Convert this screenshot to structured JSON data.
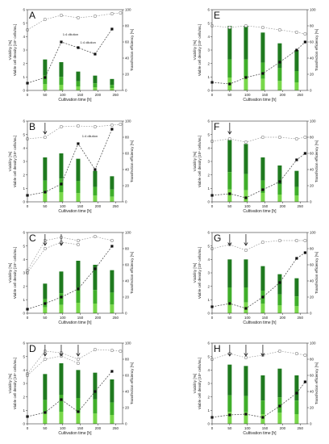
{
  "chart_data": [
    {
      "panel": "A",
      "type": "bar",
      "xlabel": "Cultivation time [h]",
      "ylabel_left": "Viability [%]",
      "ylabel_left_inner": "Viable cell density [10⁶ cells/mL]",
      "ylabel_right": "Transfection efficiency [%]",
      "x_ticks": [
        0,
        50,
        100,
        150,
        200,
        250
      ],
      "y_left_ticks": [
        0,
        1,
        2,
        3,
        4,
        5,
        6
      ],
      "y_right_ticks": [
        0,
        20,
        40,
        60,
        80,
        100
      ],
      "xlim": [
        0,
        270
      ],
      "ylim_left": [
        0,
        6
      ],
      "ylim_right": [
        0,
        100
      ],
      "arrows": [],
      "annotations": [
        {
          "text": "1:4 dilution",
          "x": 100,
          "y": 64
        },
        {
          "text": "1:4 dilution",
          "x": 150,
          "y": 54
        }
      ],
      "bars": [
        {
          "x": 50,
          "vcd": 2.3
        },
        {
          "x": 96,
          "vcd": 2.1
        },
        {
          "x": 144,
          "vcd": 1.4
        },
        {
          "x": 192,
          "vcd": 1.1
        },
        {
          "x": 240,
          "vcd": 0.85
        }
      ],
      "series": [
        {
          "style": "viability",
          "x": [
            0,
            50,
            96,
            144,
            192,
            240,
            264
          ],
          "y": [
            75,
            88,
            93,
            90,
            92,
            95,
            96
          ]
        },
        {
          "style": "efficiency",
          "x": [
            0,
            50,
            96,
            144,
            192,
            240
          ],
          "y": [
            9,
            16,
            60,
            53,
            45,
            76
          ]
        }
      ]
    },
    {
      "panel": "B",
      "type": "bar",
      "xlabel": "Cultivation time [h]",
      "ylabel_left": "Viability [%]",
      "ylabel_left_inner": "Viable cell density [10⁶ cells/mL]",
      "ylabel_right": "Transfection efficiency [%]",
      "x_ticks": [
        0,
        50,
        100,
        150,
        200,
        250
      ],
      "y_left_ticks": [
        0,
        1,
        2,
        3,
        4,
        5,
        6
      ],
      "y_right_ticks": [
        0,
        20,
        40,
        60,
        80,
        100
      ],
      "xlim": [
        0,
        270
      ],
      "ylim_left": [
        0,
        6
      ],
      "ylim_right": [
        0,
        100
      ],
      "arrows": [
        50
      ],
      "annotations": [
        {
          "text": "1:4 dilution",
          "x": 155,
          "y": 76
        }
      ],
      "bars": [
        {
          "x": 50,
          "vcd": 3.3
        },
        {
          "x": 96,
          "vcd": 3.6
        },
        {
          "x": 144,
          "vcd": 3.2
        },
        {
          "x": 192,
          "vcd": 2.3
        },
        {
          "x": 240,
          "vcd": 1.9
        }
      ],
      "series": [
        {
          "style": "viability",
          "x": [
            0,
            50,
            96,
            144,
            192,
            240,
            264
          ],
          "y": [
            78,
            80,
            93,
            94,
            93,
            95,
            96
          ]
        },
        {
          "style": "efficiency",
          "x": [
            0,
            50,
            96,
            144,
            192,
            240
          ],
          "y": [
            8,
            12,
            22,
            72,
            40,
            90
          ]
        }
      ]
    },
    {
      "panel": "C",
      "type": "bar",
      "xlabel": "Cultivation time [h]",
      "ylabel_left": "Viability [%]",
      "ylabel_left_inner": "Viable cell density [10⁶ cells/mL]",
      "ylabel_right": "Transfection efficiency [%]",
      "x_ticks": [
        0,
        50,
        100,
        150,
        200,
        250
      ],
      "y_left_ticks": [
        0,
        1,
        2,
        3,
        4,
        5,
        6
      ],
      "y_right_ticks": [
        0,
        20,
        40,
        60,
        80,
        100
      ],
      "xlim": [
        0,
        270
      ],
      "ylim_left": [
        0,
        6
      ],
      "ylim_right": [
        0,
        100
      ],
      "arrows": [
        50,
        96
      ],
      "annotations": [],
      "bars": [
        {
          "x": 50,
          "vcd": 2.2
        },
        {
          "x": 96,
          "vcd": 3.1
        },
        {
          "x": 144,
          "vcd": 3.9
        },
        {
          "x": 192,
          "vcd": 3.6
        },
        {
          "x": 240,
          "vcd": 3.2
        }
      ],
      "series": [
        {
          "style": "viability",
          "x": [
            0,
            50,
            96,
            144,
            192,
            240
          ],
          "y": [
            53,
            90,
            94,
            90,
            95,
            90
          ]
        },
        {
          "style": "viability2",
          "x": [
            0,
            50,
            96,
            144
          ],
          "y": [
            50,
            80,
            88,
            85
          ]
        },
        {
          "style": "efficiency",
          "x": [
            0,
            50,
            96,
            144,
            192,
            240
          ],
          "y": [
            5,
            12,
            20,
            30,
            55,
            83
          ]
        }
      ]
    },
    {
      "panel": "D",
      "type": "bar",
      "xlabel": "Cultivation time [h]",
      "ylabel_left": "Viability [%]",
      "ylabel_left_inner": "Viable cell density [10⁶ cells/mL]",
      "ylabel_right": "Transfection efficiency [%]",
      "x_ticks": [
        0,
        50,
        100,
        150,
        200,
        250
      ],
      "y_left_ticks": [
        0,
        1,
        2,
        3,
        4,
        5,
        6
      ],
      "y_right_ticks": [
        0,
        20,
        40,
        60,
        80,
        100
      ],
      "xlim": [
        0,
        270
      ],
      "ylim_left": [
        0,
        6
      ],
      "ylim_right": [
        0,
        100
      ],
      "arrows": [
        50,
        96,
        144
      ],
      "annotations": [],
      "bars": [
        {
          "x": 50,
          "vcd": 3.7
        },
        {
          "x": 96,
          "vcd": 4.5
        },
        {
          "x": 144,
          "vcd": 4.0
        },
        {
          "x": 192,
          "vcd": 3.8
        },
        {
          "x": 240,
          "vcd": 3.3
        }
      ],
      "series": [
        {
          "style": "viability",
          "x": [
            0,
            50,
            96,
            144,
            192,
            240,
            264
          ],
          "y": [
            62,
            90,
            88,
            80,
            92,
            91,
            90
          ]
        },
        {
          "style": "viability2",
          "x": [
            0,
            50,
            96,
            144
          ],
          "y": [
            60,
            80,
            84,
            75
          ]
        },
        {
          "style": "efficiency",
          "x": [
            0,
            50,
            96,
            144,
            192,
            240
          ],
          "y": [
            9,
            14,
            30,
            15,
            40,
            65
          ]
        }
      ]
    },
    {
      "panel": "E",
      "type": "bar",
      "xlabel": "Cultivation time [h]",
      "ylabel_left": "Viability [%]",
      "ylabel_left_inner": "Viable cell density [10⁶ cells/mL]",
      "ylabel_right": "Transfection efficiency [%]",
      "x_ticks": [
        0,
        50,
        100,
        150,
        200,
        250
      ],
      "y_left_ticks": [
        0,
        1,
        2,
        3,
        4,
        5,
        6
      ],
      "y_right_ticks": [
        0,
        20,
        40,
        60,
        80,
        100
      ],
      "xlim": [
        0,
        270
      ],
      "ylim_left": [
        0,
        6
      ],
      "ylim_right": [
        0,
        100
      ],
      "arrows": [],
      "annotations": [],
      "bars": [
        {
          "x": 50,
          "vcd": 4.8
        },
        {
          "x": 96,
          "vcd": 4.8
        },
        {
          "x": 144,
          "vcd": 4.3
        },
        {
          "x": 192,
          "vcd": 3.5
        },
        {
          "x": 240,
          "vcd": 3.0
        }
      ],
      "series": [
        {
          "style": "viability",
          "x": [
            0,
            50,
            96,
            144,
            192,
            240,
            264
          ],
          "y": [
            80,
            78,
            80,
            78,
            75,
            72,
            70
          ]
        },
        {
          "style": "efficiency",
          "x": [
            0,
            50,
            96,
            144,
            192,
            240,
            264
          ],
          "y": [
            10,
            8,
            16,
            21,
            35,
            50,
            60
          ]
        }
      ]
    },
    {
      "panel": "F",
      "type": "bar",
      "xlabel": "Cultivation time [h]",
      "ylabel_left": "Viability [%]",
      "ylabel_left_inner": "Viable cell density [10⁶ cells/mL]",
      "ylabel_right": "Transfection efficiency [%]",
      "x_ticks": [
        0,
        50,
        100,
        150,
        200,
        250
      ],
      "y_left_ticks": [
        0,
        1,
        2,
        3,
        4,
        5,
        6
      ],
      "y_right_ticks": [
        0,
        20,
        40,
        60,
        80,
        100
      ],
      "xlim": [
        0,
        270
      ],
      "ylim_left": [
        0,
        6
      ],
      "ylim_right": [
        0,
        100
      ],
      "arrows": [
        50
      ],
      "annotations": [],
      "bars": [
        {
          "x": 50,
          "vcd": 4.6
        },
        {
          "x": 96,
          "vcd": 4.3
        },
        {
          "x": 144,
          "vcd": 3.3
        },
        {
          "x": 192,
          "vcd": 2.7
        },
        {
          "x": 240,
          "vcd": 2.3
        }
      ],
      "series": [
        {
          "style": "viability",
          "x": [
            0,
            50,
            96,
            144,
            192,
            240,
            264
          ],
          "y": [
            75,
            78,
            74,
            80,
            80,
            78,
            80
          ]
        },
        {
          "style": "efficiency",
          "x": [
            0,
            50,
            96,
            144,
            192,
            240,
            264
          ],
          "y": [
            8,
            10,
            5,
            15,
            25,
            52,
            60
          ]
        }
      ]
    },
    {
      "panel": "G",
      "type": "bar",
      "xlabel": "Cultivation time [h]",
      "ylabel_left": "Viability [%]",
      "ylabel_left_inner": "Viable cell density [10⁶ cells/mL]",
      "ylabel_right": "Transfection efficiency [%]",
      "x_ticks": [
        0,
        50,
        100,
        150,
        200,
        250
      ],
      "y_left_ticks": [
        0,
        1,
        2,
        3,
        4,
        5,
        6
      ],
      "y_right_ticks": [
        0,
        20,
        40,
        60,
        80,
        100
      ],
      "xlim": [
        0,
        270
      ],
      "ylim_left": [
        0,
        6
      ],
      "ylim_right": [
        0,
        100
      ],
      "arrows": [
        50,
        96
      ],
      "annotations": [],
      "bars": [
        {
          "x": 50,
          "vcd": 4.0
        },
        {
          "x": 96,
          "vcd": 4.0
        },
        {
          "x": 144,
          "vcd": 3.5
        },
        {
          "x": 192,
          "vcd": 2.9
        },
        {
          "x": 240,
          "vcd": 2.6
        }
      ],
      "series": [
        {
          "style": "viability",
          "x": [
            0,
            50,
            96,
            144,
            192,
            240,
            264
          ],
          "y": [
            80,
            85,
            78,
            88,
            90,
            90,
            90
          ]
        },
        {
          "style": "efficiency",
          "x": [
            0,
            50,
            96,
            144,
            192,
            240,
            264
          ],
          "y": [
            8,
            12,
            6,
            20,
            38,
            68,
            75
          ]
        }
      ]
    },
    {
      "panel": "H",
      "type": "bar",
      "xlabel": "Cultivation time [h]",
      "ylabel_left": "Viability [%]",
      "ylabel_left_inner": "Viable cell density [10⁶ cells/mL]",
      "ylabel_right": "Transfection efficiency [%]",
      "x_ticks": [
        0,
        50,
        100,
        150,
        200,
        250
      ],
      "y_left_ticks": [
        0,
        1,
        2,
        3,
        4,
        5,
        6
      ],
      "y_right_ticks": [
        0,
        20,
        40,
        60,
        80,
        100
      ],
      "xlim": [
        0,
        270
      ],
      "ylim_left": [
        0,
        6
      ],
      "ylim_right": [
        0,
        100
      ],
      "arrows": [
        50,
        96,
        144
      ],
      "annotations": [],
      "bars": [
        {
          "x": 50,
          "vcd": 4.4
        },
        {
          "x": 96,
          "vcd": 4.3
        },
        {
          "x": 144,
          "vcd": 3.6
        },
        {
          "x": 192,
          "vcd": 4.1
        },
        {
          "x": 240,
          "vcd": 3.6
        }
      ],
      "series": [
        {
          "style": "viability",
          "x": [
            0,
            50,
            96,
            144,
            192,
            240,
            264
          ],
          "y": [
            80,
            87,
            82,
            85,
            90,
            87,
            85
          ]
        },
        {
          "style": "efficiency",
          "x": [
            0,
            50,
            96,
            144,
            192,
            240,
            264
          ],
          "y": [
            8,
            11,
            12,
            8,
            22,
            38,
            52
          ]
        }
      ]
    }
  ]
}
